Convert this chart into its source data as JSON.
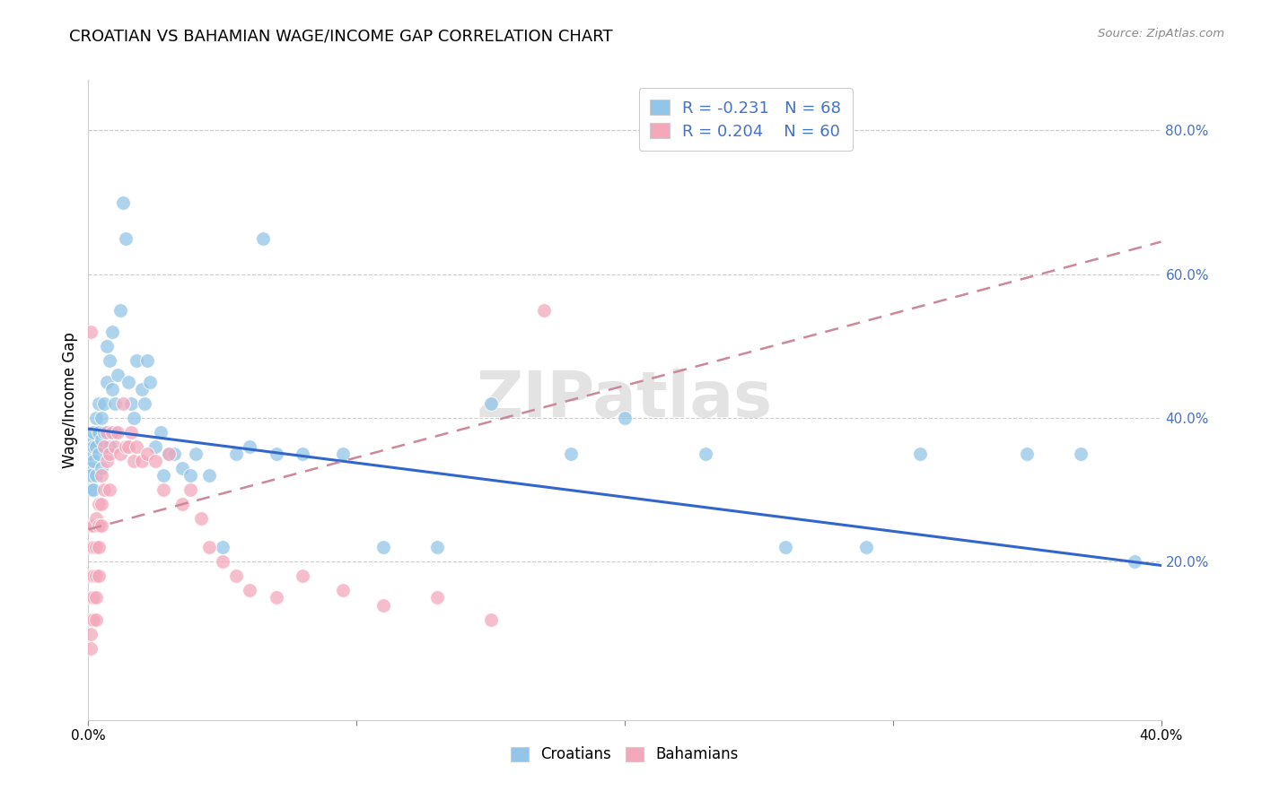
{
  "title": "CROATIAN VS BAHAMIAN WAGE/INCOME GAP CORRELATION CHART",
  "source": "Source: ZipAtlas.com",
  "ylabel": "Wage/Income Gap",
  "xlim": [
    0.0,
    0.4
  ],
  "ylim": [
    -0.02,
    0.87
  ],
  "x_ticks": [
    0.0,
    0.1,
    0.2,
    0.3,
    0.4
  ],
  "x_tick_labels": [
    "0.0%",
    "",
    "",
    "",
    "40.0%"
  ],
  "y_ticks_right": [
    0.2,
    0.4,
    0.6,
    0.8
  ],
  "y_tick_labels_right": [
    "20.0%",
    "40.0%",
    "60.0%",
    "80.0%"
  ],
  "croatian_R": -0.231,
  "croatian_N": 68,
  "bahamian_R": 0.204,
  "bahamian_N": 60,
  "blue_color": "#92C5E8",
  "pink_color": "#F4A8BC",
  "blue_line_color": "#3366CC",
  "pink_line_color": "#CC8899",
  "watermark": "ZIPatlas",
  "legend_labels": [
    "Croatians",
    "Bahamians"
  ],
  "blue_line_x0": 0.0,
  "blue_line_y0": 0.385,
  "blue_line_x1": 0.4,
  "blue_line_y1": 0.195,
  "pink_line_x0": 0.0,
  "pink_line_y0": 0.245,
  "pink_line_x1": 0.4,
  "pink_line_y1": 0.645,
  "croatian_x": [
    0.001,
    0.001,
    0.001,
    0.001,
    0.001,
    0.002,
    0.002,
    0.002,
    0.002,
    0.003,
    0.003,
    0.003,
    0.004,
    0.004,
    0.004,
    0.005,
    0.005,
    0.005,
    0.006,
    0.006,
    0.007,
    0.007,
    0.008,
    0.008,
    0.009,
    0.009,
    0.01,
    0.01,
    0.011,
    0.012,
    0.013,
    0.014,
    0.015,
    0.016,
    0.017,
    0.018,
    0.02,
    0.021,
    0.022,
    0.023,
    0.025,
    0.027,
    0.028,
    0.03,
    0.032,
    0.035,
    0.038,
    0.04,
    0.045,
    0.05,
    0.055,
    0.06,
    0.065,
    0.07,
    0.08,
    0.095,
    0.11,
    0.13,
    0.15,
    0.18,
    0.2,
    0.23,
    0.26,
    0.29,
    0.31,
    0.35,
    0.37,
    0.39
  ],
  "croatian_y": [
    0.35,
    0.33,
    0.37,
    0.3,
    0.32,
    0.36,
    0.34,
    0.38,
    0.3,
    0.4,
    0.36,
    0.32,
    0.38,
    0.42,
    0.35,
    0.37,
    0.33,
    0.4,
    0.42,
    0.38,
    0.45,
    0.5,
    0.48,
    0.36,
    0.44,
    0.52,
    0.42,
    0.38,
    0.46,
    0.55,
    0.7,
    0.65,
    0.45,
    0.42,
    0.4,
    0.48,
    0.44,
    0.42,
    0.48,
    0.45,
    0.36,
    0.38,
    0.32,
    0.35,
    0.35,
    0.33,
    0.32,
    0.35,
    0.32,
    0.22,
    0.35,
    0.36,
    0.65,
    0.35,
    0.35,
    0.35,
    0.22,
    0.22,
    0.42,
    0.35,
    0.4,
    0.35,
    0.22,
    0.22,
    0.35,
    0.35,
    0.35,
    0.2
  ],
  "bahamian_x": [
    0.001,
    0.001,
    0.001,
    0.001,
    0.001,
    0.001,
    0.001,
    0.001,
    0.002,
    0.002,
    0.002,
    0.002,
    0.002,
    0.003,
    0.003,
    0.003,
    0.003,
    0.003,
    0.004,
    0.004,
    0.004,
    0.004,
    0.005,
    0.005,
    0.005,
    0.006,
    0.006,
    0.007,
    0.007,
    0.008,
    0.008,
    0.009,
    0.01,
    0.011,
    0.012,
    0.013,
    0.014,
    0.015,
    0.016,
    0.017,
    0.018,
    0.02,
    0.022,
    0.025,
    0.028,
    0.03,
    0.035,
    0.038,
    0.042,
    0.045,
    0.05,
    0.055,
    0.06,
    0.07,
    0.08,
    0.095,
    0.11,
    0.13,
    0.15,
    0.17
  ],
  "bahamian_y": [
    0.25,
    0.22,
    0.18,
    0.15,
    0.12,
    0.1,
    0.08,
    0.52,
    0.25,
    0.22,
    0.18,
    0.15,
    0.12,
    0.26,
    0.22,
    0.18,
    0.15,
    0.12,
    0.28,
    0.25,
    0.22,
    0.18,
    0.32,
    0.28,
    0.25,
    0.36,
    0.3,
    0.38,
    0.34,
    0.35,
    0.3,
    0.38,
    0.36,
    0.38,
    0.35,
    0.42,
    0.36,
    0.36,
    0.38,
    0.34,
    0.36,
    0.34,
    0.35,
    0.34,
    0.3,
    0.35,
    0.28,
    0.3,
    0.26,
    0.22,
    0.2,
    0.18,
    0.16,
    0.15,
    0.18,
    0.16,
    0.14,
    0.15,
    0.12,
    0.55
  ]
}
